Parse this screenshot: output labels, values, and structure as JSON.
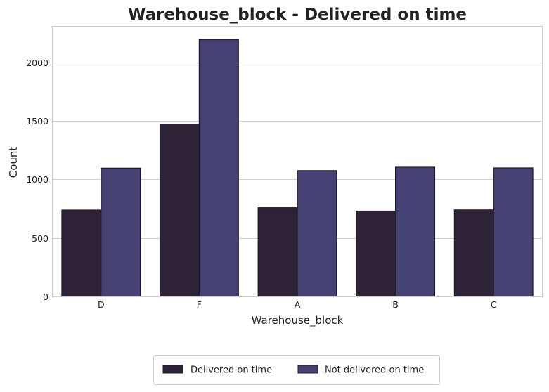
{
  "chart_data": {
    "type": "bar",
    "title": "Warehouse_block - Delivered on time",
    "xlabel": "Warehouse_block",
    "ylabel": "Count",
    "categories": [
      "D",
      "F",
      "A",
      "B",
      "C"
    ],
    "series": [
      {
        "name": "Delivered on time",
        "values": [
          738,
          1472,
          758,
          729,
          739
        ],
        "color": "#2e2236"
      },
      {
        "name": "Not delivered on time",
        "values": [
          1096,
          2194,
          1075,
          1104,
          1098
        ],
        "color": "#454273"
      }
    ],
    "ylim": [
      0,
      2310
    ],
    "yticks": [
      0,
      500,
      1000,
      1500,
      2000
    ],
    "grid": true,
    "legend": {
      "placement": "bottom-center"
    }
  }
}
